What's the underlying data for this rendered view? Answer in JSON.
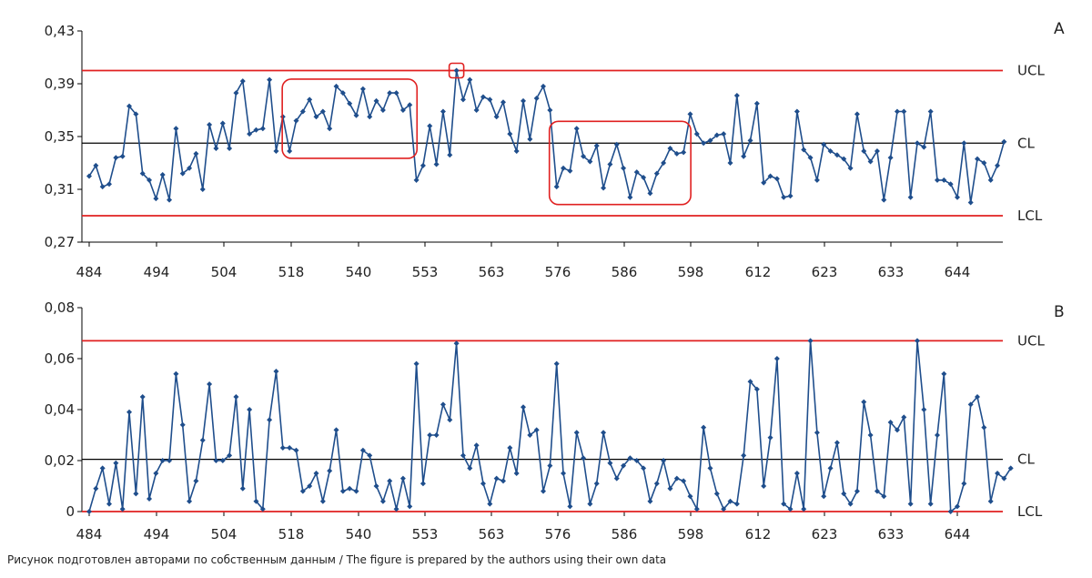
{
  "caption": "Рисунок подготовлен авторами по собственным данным / The figure is prepared by the authors using their own data",
  "colors": {
    "series": "#1f4e8c",
    "limit": "#e02020",
    "center": "#000000",
    "highlight": "#e02020"
  },
  "chart_data": [
    {
      "type": "line",
      "panel": "A",
      "x_tick_labels": [
        "484",
        "494",
        "504",
        "518",
        "540",
        "553",
        "563",
        "576",
        "586",
        "598",
        "612",
        "623",
        "633",
        "644"
      ],
      "y_tick_labels": [
        "0,27",
        "0,31",
        "0,35",
        "0,39",
        "0,43"
      ],
      "ylim": [
        0.27,
        0.43
      ],
      "limits": {
        "UCL": 0.4,
        "CL": 0.345,
        "LCL": 0.29
      },
      "limit_labels": [
        "UCL",
        "CL",
        "LCL"
      ],
      "grid": false,
      "values": [
        0.32,
        0.328,
        0.312,
        0.314,
        0.334,
        0.335,
        0.373,
        0.367,
        0.322,
        0.317,
        0.303,
        0.321,
        0.302,
        0.356,
        0.322,
        0.326,
        0.337,
        0.31,
        0.359,
        0.341,
        0.36,
        0.341,
        0.383,
        0.392,
        0.352,
        0.355,
        0.356,
        0.393,
        0.339,
        0.365,
        0.339,
        0.362,
        0.369,
        0.378,
        0.365,
        0.369,
        0.356,
        0.388,
        0.383,
        0.375,
        0.366,
        0.386,
        0.365,
        0.377,
        0.37,
        0.383,
        0.383,
        0.37,
        0.374,
        0.317,
        0.328,
        0.358,
        0.329,
        0.369,
        0.336,
        0.4,
        0.378,
        0.393,
        0.37,
        0.38,
        0.378,
        0.365,
        0.376,
        0.352,
        0.339,
        0.377,
        0.348,
        0.379,
        0.388,
        0.37,
        0.312,
        0.326,
        0.324,
        0.356,
        0.335,
        0.331,
        0.343,
        0.311,
        0.329,
        0.344,
        0.326,
        0.304,
        0.323,
        0.319,
        0.307,
        0.322,
        0.33,
        0.341,
        0.337,
        0.338,
        0.367,
        0.352,
        0.345,
        0.347,
        0.351,
        0.352,
        0.33,
        0.381,
        0.335,
        0.347,
        0.375,
        0.315,
        0.32,
        0.318,
        0.304,
        0.305,
        0.369,
        0.34,
        0.334,
        0.317,
        0.344,
        0.339,
        0.336,
        0.333,
        0.326,
        0.367,
        0.339,
        0.331,
        0.339,
        0.302,
        0.334,
        0.369,
        0.369,
        0.304,
        0.345,
        0.342,
        0.369,
        0.317,
        0.317,
        0.314,
        0.304,
        0.345,
        0.3,
        0.333,
        0.33,
        0.317,
        0.328,
        0.346
      ],
      "highlight_ranges": [
        [
          30,
          48
        ],
        [
          55,
          55
        ],
        [
          70,
          89
        ]
      ]
    },
    {
      "type": "line",
      "panel": "B",
      "x_tick_labels": [
        "484",
        "494",
        "504",
        "518",
        "540",
        "553",
        "563",
        "576",
        "586",
        "598",
        "612",
        "623",
        "633",
        "644"
      ],
      "y_tick_labels": [
        "0",
        "0,02",
        "0,04",
        "0,06",
        "0,08"
      ],
      "ylim": [
        0,
        0.08
      ],
      "limits": {
        "UCL": 0.067,
        "CL": 0.0205,
        "LCL": 0
      },
      "limit_labels": [
        "UCL",
        "CL",
        "LCL"
      ],
      "grid": false,
      "values": [
        0.0,
        0.009,
        0.017,
        0.003,
        0.019,
        0.001,
        0.039,
        0.007,
        0.045,
        0.005,
        0.015,
        0.02,
        0.02,
        0.054,
        0.034,
        0.004,
        0.012,
        0.028,
        0.05,
        0.02,
        0.02,
        0.022,
        0.045,
        0.009,
        0.04,
        0.004,
        0.001,
        0.036,
        0.055,
        0.025,
        0.025,
        0.024,
        0.008,
        0.01,
        0.015,
        0.004,
        0.016,
        0.032,
        0.008,
        0.009,
        0.008,
        0.024,
        0.022,
        0.01,
        0.004,
        0.012,
        0.001,
        0.013,
        0.002,
        0.058,
        0.011,
        0.03,
        0.03,
        0.042,
        0.036,
        0.066,
        0.022,
        0.017,
        0.026,
        0.011,
        0.003,
        0.013,
        0.012,
        0.025,
        0.015,
        0.041,
        0.03,
        0.032,
        0.008,
        0.018,
        0.058,
        0.015,
        0.002,
        0.031,
        0.021,
        0.003,
        0.011,
        0.031,
        0.019,
        0.013,
        0.018,
        0.021,
        0.02,
        0.017,
        0.004,
        0.011,
        0.02,
        0.009,
        0.013,
        0.012,
        0.006,
        0.001,
        0.033,
        0.017,
        0.007,
        0.001,
        0.004,
        0.003,
        0.022,
        0.051,
        0.048,
        0.01,
        0.029,
        0.06,
        0.003,
        0.001,
        0.015,
        0.001,
        0.067,
        0.031,
        0.006,
        0.017,
        0.027,
        0.007,
        0.003,
        0.008,
        0.043,
        0.03,
        0.008,
        0.006,
        0.035,
        0.032,
        0.037,
        0.003,
        0.067,
        0.04,
        0.003,
        0.03,
        0.054,
        0.0,
        0.002,
        0.011,
        0.042,
        0.045,
        0.033,
        0.004,
        0.015,
        0.013,
        0.017
      ]
    }
  ]
}
